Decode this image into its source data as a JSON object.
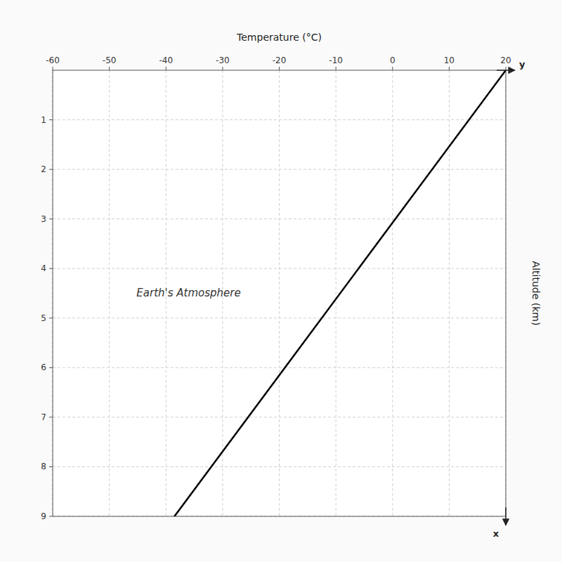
{
  "chart_data": {
    "type": "line",
    "title": "Earth's Atmosphere",
    "x_label": "Temperature (°C)",
    "y_label": "Altitude (km)",
    "annotations": [
      {
        "text": "y"
      },
      {
        "text": "x"
      }
    ],
    "x": [
      20,
      -38.5
    ],
    "values": [
      0,
      9
    ],
    "color": "#000000",
    "xlim": [
      -60,
      20
    ],
    "xticks": [
      -60,
      -50,
      -40,
      -30,
      -20,
      -10,
      0,
      10,
      20
    ],
    "ylim": [
      9,
      0
    ],
    "yticks": [
      1,
      2,
      3,
      4,
      5,
      6,
      7,
      8,
      9
    ],
    "grid": true
  }
}
